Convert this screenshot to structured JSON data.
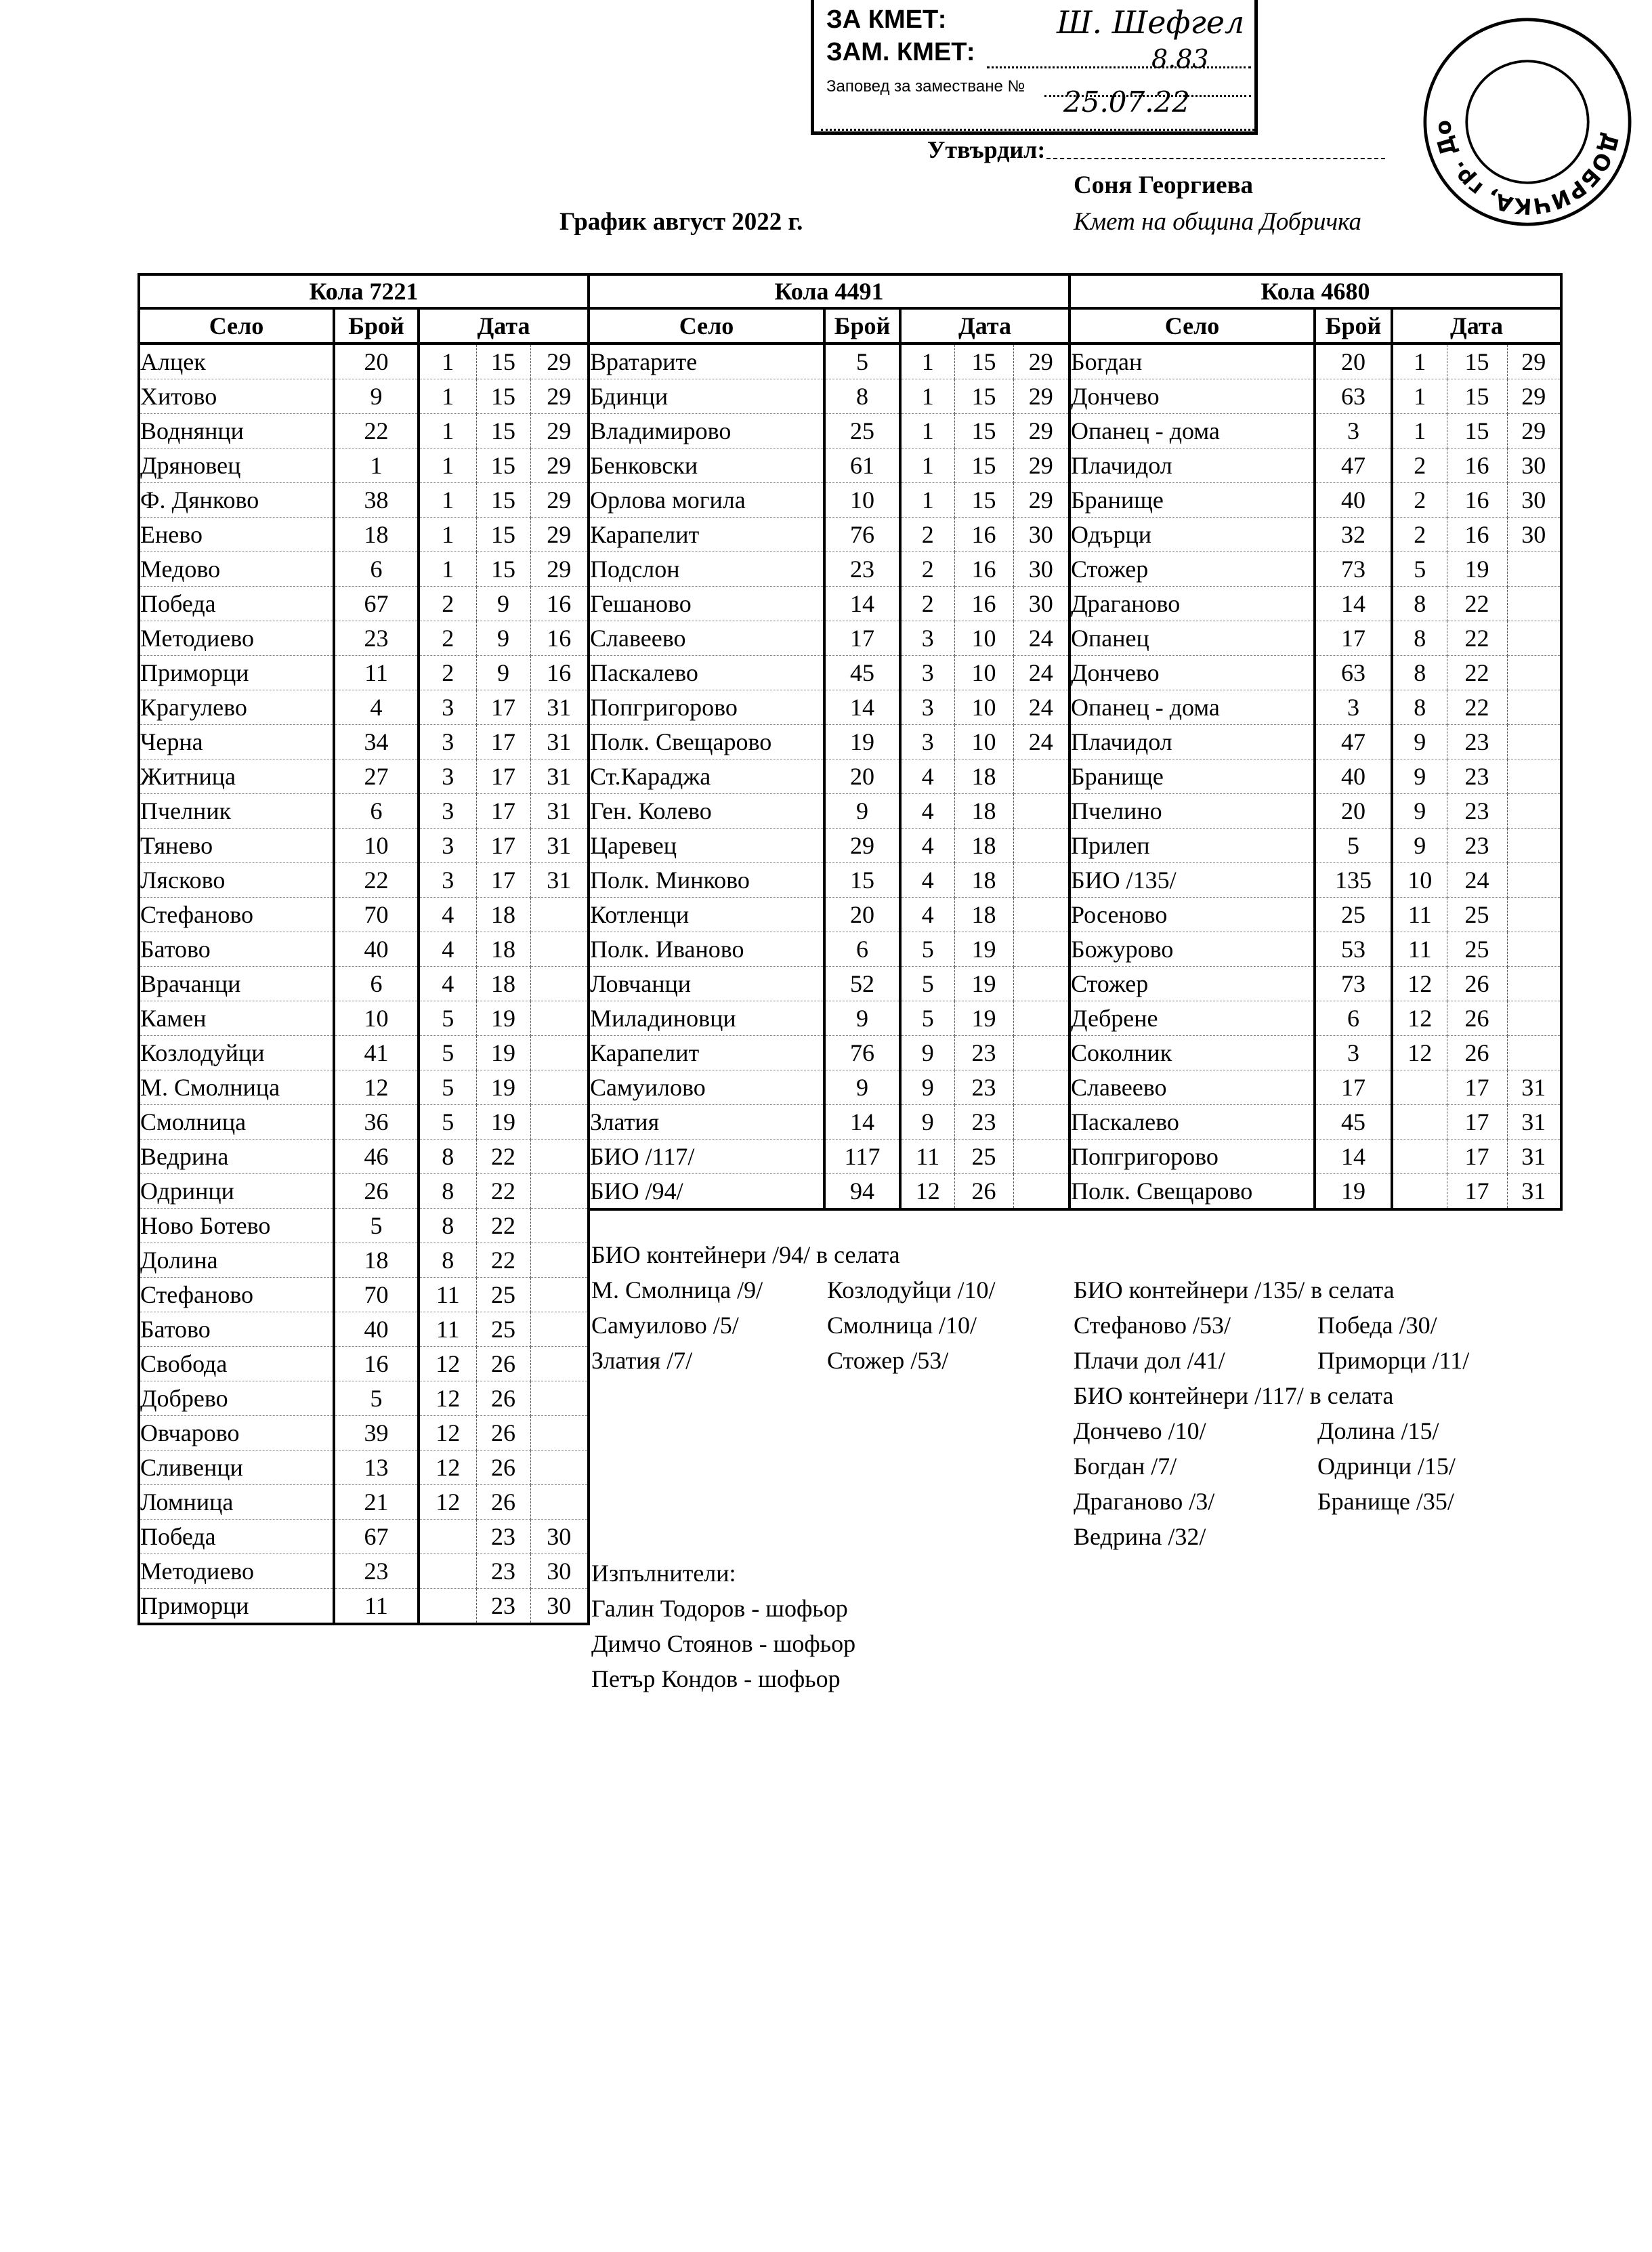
{
  "stamp": {
    "line1": "ЗА КМЕТ:",
    "line2": "ЗАМ. КМЕТ:",
    "line3": "Заповед за заместване №",
    "handwritten_signature": "Ш. Шефгел",
    "handwritten_number": "8.83",
    "handwritten_date": "25.07.22",
    "seal_text": "ДОБРИЧКА, гр. Добрич"
  },
  "approval": {
    "label": "Утвърдил:",
    "name": "Соня Георгиева",
    "role": "Кмет  на община Добричка"
  },
  "title": "График август 2022 г.",
  "columns": {
    "village": "Село",
    "count": "Брой",
    "date": "Дата"
  },
  "tables": [
    {
      "car": "Кола 7221",
      "rows": [
        [
          "Алцек",
          "20",
          "1",
          "15",
          "29"
        ],
        [
          "Хитово",
          "9",
          "1",
          "15",
          "29"
        ],
        [
          "Воднянци",
          "22",
          "1",
          "15",
          "29"
        ],
        [
          "Дряновец",
          "1",
          "1",
          "15",
          "29"
        ],
        [
          "Ф. Дянково",
          "38",
          "1",
          "15",
          "29"
        ],
        [
          "Енево",
          "18",
          "1",
          "15",
          "29"
        ],
        [
          "Медово",
          "6",
          "1",
          "15",
          "29"
        ],
        [
          "Победа",
          "67",
          "2",
          "9",
          "16"
        ],
        [
          "Методиево",
          "23",
          "2",
          "9",
          "16"
        ],
        [
          "Приморци",
          "11",
          "2",
          "9",
          "16"
        ],
        [
          "Крагулево",
          "4",
          "3",
          "17",
          "31"
        ],
        [
          "Черна",
          "34",
          "3",
          "17",
          "31"
        ],
        [
          "Житница",
          "27",
          "3",
          "17",
          "31"
        ],
        [
          "Пчелник",
          "6",
          "3",
          "17",
          "31"
        ],
        [
          "Тянево",
          "10",
          "3",
          "17",
          "31"
        ],
        [
          "Лясково",
          "22",
          "3",
          "17",
          "31"
        ],
        [
          "Стефаново",
          "70",
          "4",
          "18",
          ""
        ],
        [
          "Батово",
          "40",
          "4",
          "18",
          ""
        ],
        [
          "Врачанци",
          "6",
          "4",
          "18",
          ""
        ],
        [
          "Камен",
          "10",
          "5",
          "19",
          ""
        ],
        [
          "Козлодуйци",
          "41",
          "5",
          "19",
          ""
        ],
        [
          "М. Смолница",
          "12",
          "5",
          "19",
          ""
        ],
        [
          "Смолница",
          "36",
          "5",
          "19",
          ""
        ],
        [
          "Ведрина",
          "46",
          "8",
          "22",
          ""
        ],
        [
          "Одринци",
          "26",
          "8",
          "22",
          ""
        ],
        [
          "Ново Ботево",
          "5",
          "8",
          "22",
          ""
        ],
        [
          "Долина",
          "18",
          "8",
          "22",
          ""
        ],
        [
          "Стефаново",
          "70",
          "11",
          "25",
          ""
        ],
        [
          "Батово",
          "40",
          "11",
          "25",
          ""
        ],
        [
          "Свобода",
          "16",
          "12",
          "26",
          ""
        ],
        [
          "Добрево",
          "5",
          "12",
          "26",
          ""
        ],
        [
          "Овчарово",
          "39",
          "12",
          "26",
          ""
        ],
        [
          "Сливенци",
          "13",
          "12",
          "26",
          ""
        ],
        [
          "Ломница",
          "21",
          "12",
          "26",
          ""
        ],
        [
          "Победа",
          "67",
          "",
          "23",
          "30"
        ],
        [
          "Методиево",
          "23",
          "",
          "23",
          "30"
        ],
        [
          "Приморци",
          "11",
          "",
          "23",
          "30"
        ]
      ]
    },
    {
      "car": "Кола 4491",
      "rows": [
        [
          "Вратарите",
          "5",
          "1",
          "15",
          "29"
        ],
        [
          "Бдинци",
          "8",
          "1",
          "15",
          "29"
        ],
        [
          "Владимирово",
          "25",
          "1",
          "15",
          "29"
        ],
        [
          "Бенковски",
          "61",
          "1",
          "15",
          "29"
        ],
        [
          "Орлова могила",
          "10",
          "1",
          "15",
          "29"
        ],
        [
          "Карапелит",
          "76",
          "2",
          "16",
          "30"
        ],
        [
          "Подслон",
          "23",
          "2",
          "16",
          "30"
        ],
        [
          "Гешаново",
          "14",
          "2",
          "16",
          "30"
        ],
        [
          "Славеево",
          "17",
          "3",
          "10",
          "24"
        ],
        [
          "Паскалево",
          "45",
          "3",
          "10",
          "24"
        ],
        [
          "Попгригорово",
          "14",
          "3",
          "10",
          "24"
        ],
        [
          "Полк. Свещарово",
          "19",
          "3",
          "10",
          "24"
        ],
        [
          "Ст.Караджа",
          "20",
          "4",
          "18",
          ""
        ],
        [
          "Ген. Колево",
          "9",
          "4",
          "18",
          ""
        ],
        [
          "Царевец",
          "29",
          "4",
          "18",
          ""
        ],
        [
          "Полк. Минково",
          "15",
          "4",
          "18",
          ""
        ],
        [
          "Котленци",
          "20",
          "4",
          "18",
          ""
        ],
        [
          "Полк. Иваново",
          "6",
          "5",
          "19",
          ""
        ],
        [
          "Ловчанци",
          "52",
          "5",
          "19",
          ""
        ],
        [
          "Миладиновци",
          "9",
          "5",
          "19",
          ""
        ],
        [
          "Карапелит",
          "76",
          "9",
          "23",
          ""
        ],
        [
          "Самуилово",
          "9",
          "9",
          "23",
          ""
        ],
        [
          "Златия",
          "14",
          "9",
          "23",
          ""
        ],
        [
          "БИО /117/",
          "117",
          "11",
          "25",
          ""
        ],
        [
          "БИО /94/",
          "94",
          "12",
          "26",
          ""
        ]
      ]
    },
    {
      "car": "Кола 4680",
      "rows": [
        [
          "Богдан",
          "20",
          "1",
          "15",
          "29"
        ],
        [
          "Дончево",
          "63",
          "1",
          "15",
          "29"
        ],
        [
          "Опанец - дома",
          "3",
          "1",
          "15",
          "29"
        ],
        [
          "Плачидол",
          "47",
          "2",
          "16",
          "30"
        ],
        [
          "Бранище",
          "40",
          "2",
          "16",
          "30"
        ],
        [
          "Одърци",
          "32",
          "2",
          "16",
          "30"
        ],
        [
          "Стожер",
          "73",
          "5",
          "19",
          ""
        ],
        [
          "Драганово",
          "14",
          "8",
          "22",
          ""
        ],
        [
          "Опанец",
          "17",
          "8",
          "22",
          ""
        ],
        [
          "Дончево",
          "63",
          "8",
          "22",
          ""
        ],
        [
          "Опанец - дома",
          "3",
          "8",
          "22",
          ""
        ],
        [
          "Плачидол",
          "47",
          "9",
          "23",
          ""
        ],
        [
          "Бранище",
          "40",
          "9",
          "23",
          ""
        ],
        [
          "Пчелино",
          "20",
          "9",
          "23",
          ""
        ],
        [
          "Прилеп",
          "5",
          "9",
          "23",
          ""
        ],
        [
          "БИО /135/",
          "135",
          "10",
          "24",
          ""
        ],
        [
          "Росеново",
          "25",
          "11",
          "25",
          ""
        ],
        [
          "Божурово",
          "53",
          "11",
          "25",
          ""
        ],
        [
          "Стожер",
          "73",
          "12",
          "26",
          ""
        ],
        [
          "Дебрене",
          "6",
          "12",
          "26",
          ""
        ],
        [
          "Соколник",
          "3",
          "12",
          "26",
          ""
        ],
        [
          "Славеево",
          "17",
          "",
          "17",
          "31"
        ],
        [
          "Паскалево",
          "45",
          "",
          "17",
          "31"
        ],
        [
          "Попгригорово",
          "14",
          "",
          "17",
          "31"
        ],
        [
          "Полк. Свещарово",
          "19",
          "",
          "17",
          "31"
        ]
      ]
    }
  ],
  "notes_middle": {
    "heading": "БИО контейнери /94/ в селата",
    "items": [
      [
        "М. Смолница /9/",
        "Козлодуйци /10/"
      ],
      [
        "Самуилово /5/",
        "Смолница /10/"
      ],
      [
        "Златия /7/",
        "Стожер /53/"
      ]
    ]
  },
  "notes_right": [
    {
      "heading": "БИО контейнери /135/ в селата",
      "items": [
        [
          "Стефаново /53/",
          "Победа /30/"
        ],
        [
          "Плачи дол /41/",
          "Приморци /11/"
        ]
      ]
    },
    {
      "heading": "БИО контейнери /117/ в селата",
      "items": [
        [
          "Дончево /10/",
          "Долина /15/"
        ],
        [
          "Богдан /7/",
          "Одринци /15/"
        ],
        [
          "Драганово /3/",
          "Бранище /35/"
        ],
        [
          "Ведрина /32/",
          ""
        ]
      ]
    }
  ],
  "executors": {
    "heading": "Изпълнители:",
    "people": [
      "Галин Тодоров - шофьор",
      "Димчо Стоянов - шофьор",
      "Петър Кондов - шофьор"
    ]
  }
}
